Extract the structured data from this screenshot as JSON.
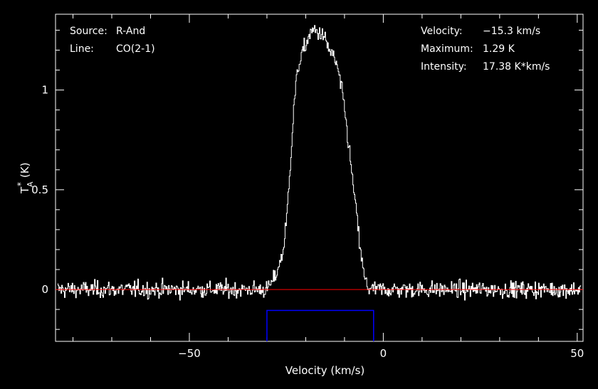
{
  "info": {
    "source_label": "Source:",
    "source_value": "R-And",
    "line_label": "Line:",
    "line_value": "CO(2-1)",
    "velocity_label": "Velocity:",
    "velocity_value": "−15.3 km/s",
    "maximum_label": "Maximum:",
    "maximum_value": "1.29 K",
    "intensity_label": "Intensity:",
    "intensity_value": "17.38 K*km/s"
  },
  "chart_data": {
    "type": "line",
    "xlabel": "Velocity (km/s)",
    "ylabel_main": "T",
    "ylabel_sup": "*",
    "ylabel_sub": "A",
    "ylabel_unit": "(K)",
    "xlim": [
      -84.5,
      51.5
    ],
    "ylim": [
      -0.26,
      1.38
    ],
    "xticks": [
      {
        "value": -50,
        "label": "−50"
      },
      {
        "value": 0,
        "label": "0"
      },
      {
        "value": 50,
        "label": "50"
      }
    ],
    "yticks": [
      {
        "value": 0,
        "label": "0"
      },
      {
        "value": 0.5,
        "label": "0.5"
      },
      {
        "value": 1,
        "label": "1"
      }
    ],
    "series": [
      {
        "color": "#ffffff",
        "noise_rms": 0.03,
        "x": [
          -84,
          -30,
          -28,
          -26,
          -25,
          -24,
          -23,
          -22,
          -21,
          -20,
          -19,
          -18,
          -17,
          -16,
          -15,
          -14,
          -13,
          -12,
          -11,
          -10,
          -9,
          -8,
          -7,
          -6,
          -5,
          -4,
          -3,
          51
        ],
        "y": [
          0,
          0,
          0.06,
          0.18,
          0.35,
          0.65,
          0.95,
          1.12,
          1.18,
          1.23,
          1.28,
          1.3,
          1.29,
          1.28,
          1.25,
          1.2,
          1.17,
          1.12,
          1.02,
          0.9,
          0.72,
          0.55,
          0.38,
          0.2,
          0.06,
          0.01,
          0,
          0
        ]
      }
    ],
    "baseline": {
      "y": 0,
      "color": "#ff0000"
    },
    "window": {
      "x": [
        -30,
        -2.5
      ],
      "y_top": -0.105,
      "y_bottom": -0.26,
      "color": "#0000ff"
    },
    "axis_color": "#ffffff"
  }
}
